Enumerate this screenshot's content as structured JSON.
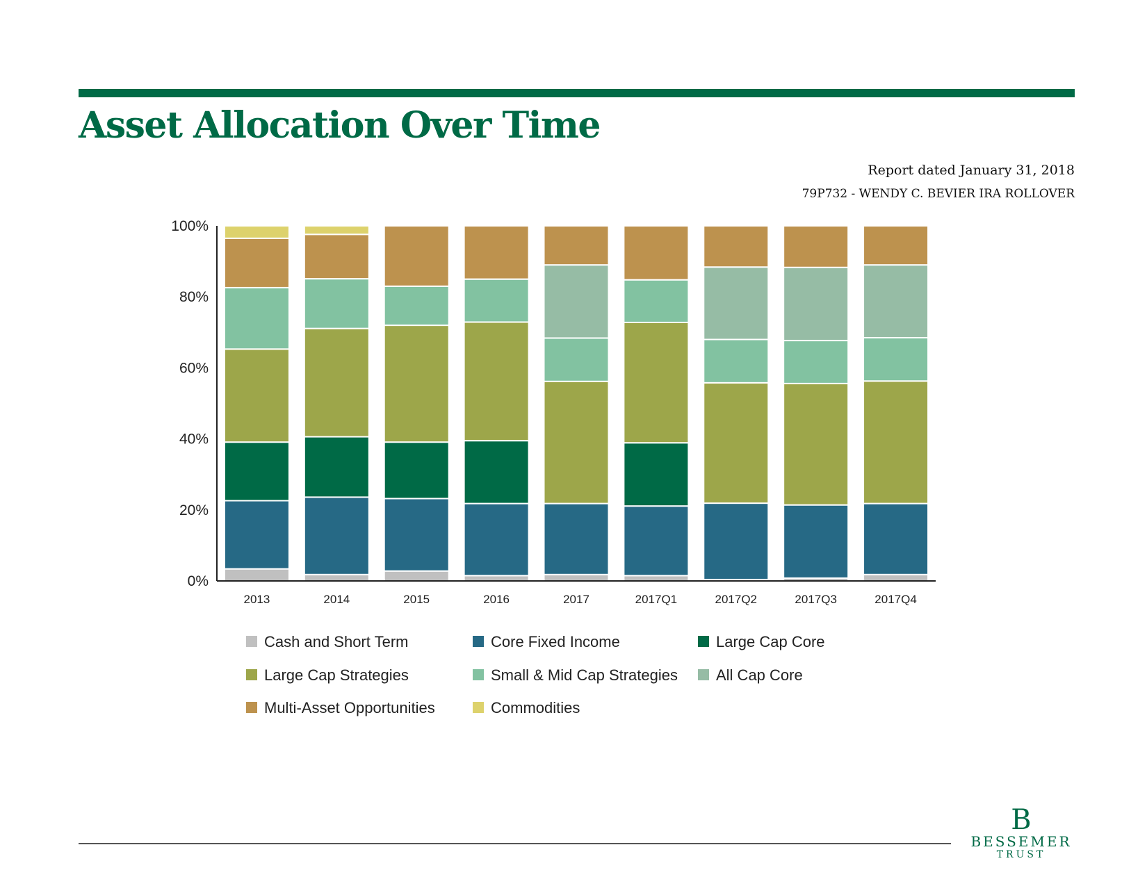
{
  "header": {
    "title": "Asset Allocation Over Time",
    "report_date": "Report dated January 31, 2018",
    "account": "79P732 - WENDY C. BEVIER IRA ROLLOVER"
  },
  "logo": {
    "mark": "B",
    "line1": "BESSEMER",
    "line2": "TRUST"
  },
  "chart_data": {
    "type": "bar",
    "stacked": true,
    "categories": [
      "2013",
      "2014",
      "2015",
      "2016",
      "2017",
      "2017Q1",
      "2017Q2",
      "2017Q3",
      "2017Q4"
    ],
    "y_ticks": [
      "0%",
      "20%",
      "40%",
      "60%",
      "80%",
      "100%"
    ],
    "ylim": [
      0,
      100
    ],
    "legend_position": "bottom",
    "series": [
      {
        "name": "Cash and Short Term",
        "color": "#c0c0c0",
        "values": [
          3.4,
          1.8,
          2.8,
          1.5,
          1.8,
          1.5,
          0.4,
          0.8,
          1.8
        ]
      },
      {
        "name": "Core Fixed Income",
        "color": "#266985",
        "values": [
          19.2,
          21.8,
          20.4,
          20.3,
          20.0,
          19.6,
          21.5,
          20.6,
          20.0
        ]
      },
      {
        "name": "Large Cap Core",
        "color": "#006a46",
        "values": [
          16.5,
          17.0,
          15.9,
          17.7,
          0,
          17.8,
          0,
          0,
          0
        ]
      },
      {
        "name": "Large Cap Strategies",
        "color": "#9da64a",
        "values": [
          26.2,
          30.5,
          32.9,
          33.4,
          34.4,
          33.9,
          33.9,
          34.2,
          34.5
        ]
      },
      {
        "name": "Small & Mid Cap Strategies",
        "color": "#82c2a1",
        "values": [
          17.3,
          14.0,
          11.0,
          12.1,
          12.2,
          12.0,
          12.2,
          12.1,
          12.2
        ]
      },
      {
        "name": "All Cap Core",
        "color": "#96bca5",
        "values": [
          0,
          0,
          0,
          0,
          20.6,
          0,
          20.4,
          20.6,
          20.5
        ]
      },
      {
        "name": "Multi-Asset Opportunities",
        "color": "#bd924e",
        "values": [
          13.9,
          12.5,
          17.0,
          15.0,
          11.0,
          15.2,
          11.6,
          11.7,
          11.0
        ]
      },
      {
        "name": "Commodities",
        "color": "#ddd26c",
        "values": [
          3.5,
          2.4,
          0,
          0,
          0,
          0,
          0,
          0,
          0
        ]
      }
    ]
  }
}
